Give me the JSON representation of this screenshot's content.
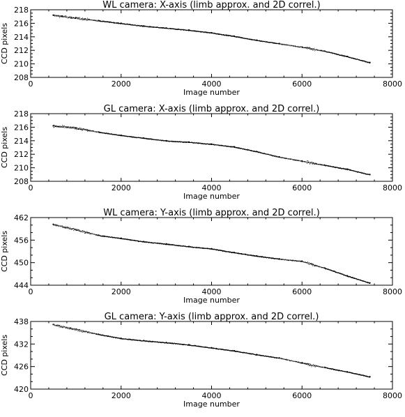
{
  "chart_data": [
    {
      "type": "scatter",
      "title": "WL camera: X-axis (limb approx. and 2D correl.)",
      "xlabel": "Image number",
      "ylabel": "CCD pixels",
      "xlim": [
        0,
        8000
      ],
      "ylim": [
        208,
        218
      ],
      "xticks": [
        "0",
        "2000",
        "4000",
        "6000",
        "8000"
      ],
      "yticks": [
        "208",
        "210",
        "212",
        "214",
        "216",
        "218"
      ],
      "series": [
        {
          "x": [
            500,
            1000,
            1500,
            2000,
            2500,
            3000,
            3500,
            4000,
            4500,
            5000,
            5500,
            6000,
            6500,
            7000,
            7500
          ],
          "y": [
            217.2,
            216.8,
            216.4,
            216.0,
            215.6,
            215.3,
            215.0,
            214.6,
            214.1,
            213.5,
            213.0,
            212.5,
            211.9,
            211.1,
            210.2
          ]
        }
      ]
    },
    {
      "type": "scatter",
      "title": "GL camera: X-axis (limb approx. and 2D correl.)",
      "xlabel": "Image number",
      "ylabel": "CCD pixels",
      "xlim": [
        0,
        8000
      ],
      "ylim": [
        208,
        218
      ],
      "xticks": [
        "0",
        "2000",
        "4000",
        "6000",
        "8000"
      ],
      "yticks": [
        "208",
        "210",
        "212",
        "214",
        "216",
        "218"
      ],
      "series": [
        {
          "x": [
            500,
            1000,
            1500,
            2000,
            2500,
            3000,
            3500,
            4000,
            4500,
            5000,
            5500,
            6000,
            6500,
            7000,
            7500
          ],
          "y": [
            216.2,
            215.9,
            215.3,
            214.8,
            214.4,
            214.0,
            213.8,
            213.5,
            213.1,
            212.4,
            211.6,
            211.0,
            210.4,
            209.8,
            209.0
          ]
        }
      ]
    },
    {
      "type": "scatter",
      "title": "WL camera: Y-axis (limb approx. and 2D correl.)",
      "xlabel": "Image number",
      "ylabel": "CCD pixels",
      "xlim": [
        0,
        8000
      ],
      "ylim": [
        444,
        462
      ],
      "xticks": [
        "0",
        "2000",
        "4000",
        "6000",
        "8000"
      ],
      "yticks": [
        "444",
        "450",
        "456",
        "462"
      ],
      "series": [
        {
          "x": [
            500,
            1000,
            1500,
            2000,
            2500,
            3000,
            3500,
            4000,
            4500,
            5000,
            5500,
            6000,
            6500,
            7000,
            7500
          ],
          "y": [
            460.2,
            458.8,
            457.3,
            456.5,
            455.6,
            455.0,
            454.3,
            453.7,
            452.7,
            451.8,
            451.0,
            450.4,
            448.6,
            446.5,
            444.6
          ]
        }
      ]
    },
    {
      "type": "scatter",
      "title": "GL camera: Y-axis (limb approx. and 2D correl.)",
      "xlabel": "Image number",
      "ylabel": "CCD pixels",
      "xlim": [
        0,
        8000
      ],
      "ylim": [
        420,
        438
      ],
      "xticks": [
        "0",
        "2000",
        "4000",
        "6000",
        "8000"
      ],
      "yticks": [
        "420",
        "426",
        "432",
        "438"
      ],
      "series": [
        {
          "x": [
            500,
            1000,
            1500,
            2000,
            2500,
            3000,
            3500,
            4000,
            4500,
            5000,
            5500,
            6000,
            6500,
            7000,
            7500
          ],
          "y": [
            437.2,
            435.9,
            434.6,
            433.5,
            432.9,
            432.4,
            431.8,
            431.0,
            430.2,
            429.2,
            428.3,
            427.0,
            425.8,
            424.6,
            423.3
          ]
        }
      ]
    }
  ]
}
